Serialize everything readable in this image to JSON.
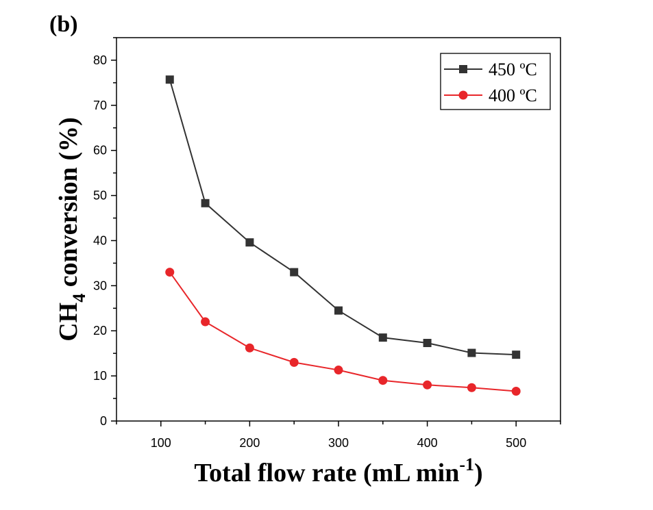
{
  "panel_label": "(b)",
  "chart_data": {
    "type": "line",
    "xlabel": "Total flow rate (mL min-1)",
    "xlabel_parts": {
      "main": "Total flow rate (mL min",
      "sup": "-1",
      "close": ")"
    },
    "ylabel": "CH4 conversion (%)",
    "ylabel_parts": {
      "pre": "CH",
      "sub": "4",
      "post": " conversion (%)"
    },
    "xlim": [
      50,
      550
    ],
    "ylim": [
      0,
      85
    ],
    "xticks": [
      100,
      200,
      300,
      400,
      500
    ],
    "yticks": [
      0,
      10,
      20,
      30,
      40,
      50,
      60,
      70,
      80
    ],
    "x": [
      110,
      150,
      200,
      250,
      300,
      350,
      400,
      450,
      500
    ],
    "series": [
      {
        "name": "450 ºC",
        "marker": "square",
        "color": "#333333",
        "values": [
          75.7,
          48.3,
          39.6,
          33.0,
          24.5,
          18.5,
          17.3,
          15.1,
          14.7
        ]
      },
      {
        "name": "400 ºC",
        "marker": "circle",
        "color": "#e8262a",
        "values": [
          33.0,
          22.0,
          16.2,
          13.0,
          11.3,
          9.0,
          8.0,
          7.4,
          6.6
        ]
      }
    ],
    "legend_position": "top-right",
    "grid": false
  }
}
